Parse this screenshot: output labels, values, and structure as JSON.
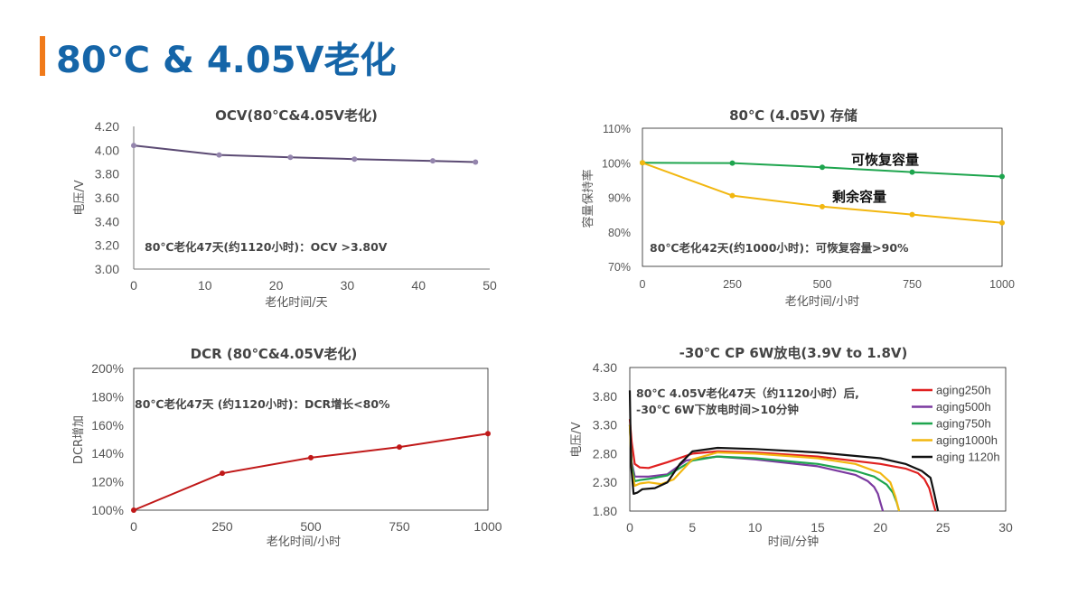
{
  "page": {
    "title": "80℃ & 4.05V老化"
  },
  "chart_data": [
    {
      "type": "line",
      "title": "OCV(80℃&4.05V老化)",
      "xlabel": "老化时间/天",
      "ylabel": "电压/V",
      "xlim": [
        0,
        50
      ],
      "ylim": [
        3.0,
        4.2
      ],
      "x_ticks": [
        "0",
        "10",
        "20",
        "30",
        "40",
        "50"
      ],
      "y_ticks": [
        "4.20",
        "4.00",
        "3.80",
        "3.60",
        "3.40",
        "3.20",
        "3.00"
      ],
      "annotation": "80℃老化47天(约1120小时)：OCV >3.80V",
      "colors": {
        "line": "#5b4a73",
        "marker": "#9485ad"
      },
      "series": [
        {
          "x": [
            0,
            12,
            22,
            31,
            42,
            48
          ],
          "y": [
            4.04,
            3.96,
            3.94,
            3.925,
            3.91,
            3.9
          ]
        }
      ]
    },
    {
      "type": "line",
      "title": "80℃ (4.05V) 存储",
      "xlabel": "老化时间/小时",
      "ylabel": "容量保持率",
      "xlim": [
        0,
        1000
      ],
      "ylim": [
        70,
        110
      ],
      "x_ticks": [
        "0",
        "250",
        "500",
        "750",
        "1000"
      ],
      "y_ticks": [
        "110%",
        "100%",
        "90%",
        "80%",
        "70%"
      ],
      "annotation": "80℃老化42天(约1000小时)：可恢复容量>90%",
      "series": [
        {
          "name": "可恢复容量",
          "color": "#1ea54e",
          "x": [
            0,
            250,
            500,
            750,
            1000
          ],
          "y": [
            100,
            99.9,
            98.7,
            97.3,
            96
          ]
        },
        {
          "name": "剩余容量",
          "color": "#f2b710",
          "x": [
            0,
            250,
            500,
            750,
            1000
          ],
          "y": [
            100,
            90.5,
            87.3,
            85.0,
            82.6
          ]
        }
      ]
    },
    {
      "type": "line",
      "title": "DCR (80℃&4.05V老化)",
      "xlabel": "老化时间/小时",
      "ylabel": "DCR增加",
      "xlim": [
        0,
        1000
      ],
      "ylim": [
        100,
        200
      ],
      "x_ticks": [
        "0",
        "250",
        "500",
        "750",
        "1000"
      ],
      "y_ticks": [
        "200%",
        "180%",
        "160%",
        "140%",
        "120%",
        "100%"
      ],
      "annotation": "80℃老化47天 (约1120小时)：DCR增长<80%",
      "colors": {
        "line": "#c01818"
      },
      "series": [
        {
          "x": [
            0,
            250,
            500,
            750,
            1000
          ],
          "y": [
            100,
            126,
            137,
            144.5,
            154
          ]
        }
      ]
    },
    {
      "type": "line",
      "title": "-30℃ CP 6W放电(3.9V to 1.8V)",
      "xlabel": "时间/分钟",
      "ylabel": "电压/V",
      "xlim": [
        0,
        30
      ],
      "ylim": [
        1.8,
        4.3
      ],
      "x_ticks": [
        "0",
        "5",
        "10",
        "15",
        "20",
        "25",
        "30"
      ],
      "y_ticks": [
        "4.30",
        "3.80",
        "3.30",
        "2.80",
        "2.30",
        "1.80"
      ],
      "annotation_lines": [
        "80℃ 4.05V老化47天（约1120小时）后,",
        "-30℃ 6W下放电时间>10分钟"
      ],
      "series": [
        {
          "name": "aging250h",
          "color": "#e02020",
          "x": [
            0,
            0.15,
            0.4,
            0.8,
            1.5,
            3,
            5,
            7,
            10,
            15,
            20,
            22,
            23,
            23.5,
            23.9,
            24.2,
            24.4
          ],
          "y": [
            3.4,
            3.0,
            2.62,
            2.56,
            2.55,
            2.65,
            2.8,
            2.84,
            2.82,
            2.75,
            2.62,
            2.54,
            2.46,
            2.36,
            2.2,
            1.95,
            1.8
          ]
        },
        {
          "name": "aging500h",
          "color": "#7b3aa0",
          "x": [
            0,
            0.15,
            0.4,
            0.8,
            1.5,
            3,
            4.5,
            7,
            10,
            15,
            18,
            19,
            19.5,
            19.8,
            20.0,
            20.2
          ],
          "y": [
            3.3,
            2.65,
            2.4,
            2.4,
            2.4,
            2.44,
            2.68,
            2.75,
            2.7,
            2.58,
            2.43,
            2.32,
            2.22,
            2.1,
            1.95,
            1.8
          ]
        },
        {
          "name": "aging750h",
          "color": "#1ea54e",
          "x": [
            0,
            0.15,
            0.4,
            0.8,
            1.5,
            3,
            5,
            7,
            10,
            15,
            18,
            19.5,
            20.5,
            21.0,
            21.3,
            21.5
          ],
          "y": [
            3.3,
            2.6,
            2.32,
            2.34,
            2.36,
            2.42,
            2.68,
            2.75,
            2.72,
            2.62,
            2.5,
            2.4,
            2.26,
            2.12,
            1.95,
            1.8
          ]
        },
        {
          "name": "aging1000h",
          "color": "#f2b710",
          "x": [
            0,
            0.15,
            0.4,
            0.8,
            1.5,
            2.5,
            3.5,
            5,
            7,
            10,
            15,
            18,
            20,
            20.8,
            21.2,
            21.5
          ],
          "y": [
            3.3,
            2.5,
            2.24,
            2.28,
            2.3,
            2.27,
            2.35,
            2.7,
            2.82,
            2.8,
            2.72,
            2.62,
            2.46,
            2.3,
            2.05,
            1.8
          ]
        },
        {
          "name": "aging 1120h",
          "color": "#111111",
          "x": [
            0,
            0.1,
            0.3,
            0.6,
            1.0,
            2.0,
            3.0,
            4.0,
            5,
            7,
            10,
            15,
            20,
            22,
            23.3,
            24.0,
            24.3,
            24.6
          ],
          "y": [
            3.9,
            2.6,
            2.1,
            2.12,
            2.18,
            2.2,
            2.3,
            2.62,
            2.84,
            2.9,
            2.88,
            2.82,
            2.72,
            2.62,
            2.5,
            2.38,
            2.1,
            1.8
          ]
        }
      ]
    }
  ]
}
